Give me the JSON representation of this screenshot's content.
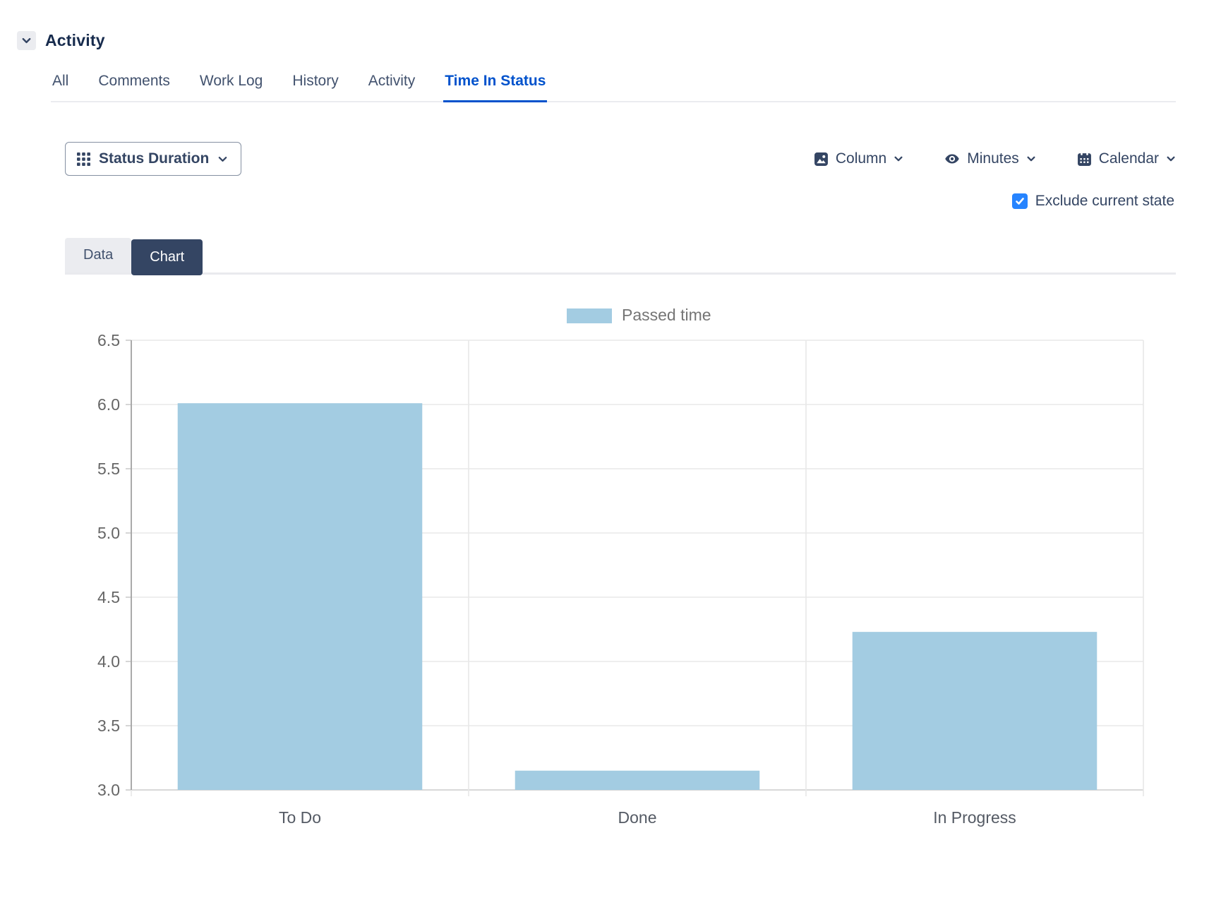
{
  "header": {
    "title": "Activity"
  },
  "activity_tabs": {
    "items": [
      {
        "label": "All",
        "active": false
      },
      {
        "label": "Comments",
        "active": false
      },
      {
        "label": "Work Log",
        "active": false
      },
      {
        "label": "History",
        "active": false
      },
      {
        "label": "Activity",
        "active": false
      },
      {
        "label": "Time In Status",
        "active": true
      }
    ]
  },
  "toolbar": {
    "report_selector_label": "Status Duration",
    "column_label": "Column",
    "minutes_label": "Minutes",
    "calendar_label": "Calendar",
    "exclude_label": "Exclude current state",
    "exclude_checked": true
  },
  "view_tabs": {
    "data_label": "Data",
    "chart_label": "Chart",
    "active": "Chart"
  },
  "chart_data": {
    "type": "bar",
    "title": "",
    "xlabel": "",
    "ylabel": "",
    "legend": [
      "Passed time"
    ],
    "legend_position": "top",
    "categories": [
      "To Do",
      "Done",
      "In Progress"
    ],
    "series": [
      {
        "name": "Passed time",
        "values": [
          6.01,
          3.15,
          4.23
        ],
        "color": "#A3CCE2"
      }
    ],
    "ylim": [
      3.0,
      6.5
    ],
    "ytick_step": 0.5,
    "ytick_labels": [
      "3.0",
      "3.5",
      "4.0",
      "4.5",
      "5.0",
      "5.5",
      "6.0",
      "6.5"
    ],
    "grid": true
  },
  "colors": {
    "accent_blue": "#0052CC",
    "navy": "#344563",
    "title_text": "#172B4D",
    "bar_fill": "#A3CCE2",
    "checkbox_blue": "#2684FF",
    "gridline": "#E8E8E8",
    "axis_line": "#999999",
    "legend_text": "#757575",
    "y_label_text": "#666666",
    "x_label_text": "#545A64"
  }
}
